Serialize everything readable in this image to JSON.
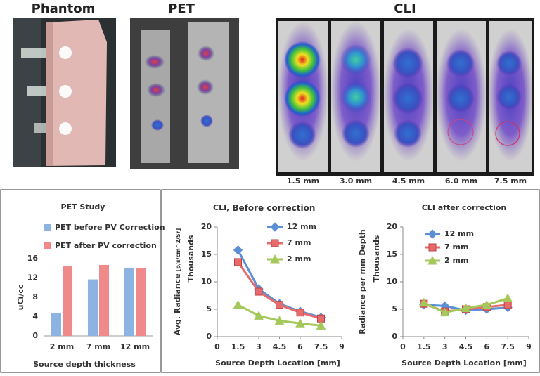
{
  "header": {
    "phantom": "Phantom",
    "pet": "PET",
    "cli": "CLI",
    "cli_depths": [
      "1.5 mm",
      "3.0 mm",
      "4.5 mm",
      "6.0 mm",
      "7.5 mm"
    ]
  },
  "chart_data": [
    {
      "type": "bar",
      "title": "PET Study",
      "ylabel": "uCi/cc",
      "xlabel": "Source depth thickness",
      "categories": [
        "2 mm",
        "7 mm",
        "12 mm"
      ],
      "series": [
        {
          "name": "PET before PV Correction",
          "color": "#8db3e2",
          "values": [
            4.7,
            11.7,
            14.1
          ]
        },
        {
          "name": "PET after PV correction",
          "color": "#f08a8a",
          "values": [
            14.5,
            14.7,
            14.1
          ]
        }
      ],
      "ylim": [
        0,
        16
      ],
      "yticks": [
        0,
        4,
        8,
        12,
        16
      ],
      "legend": "top-left"
    },
    {
      "type": "line",
      "title": "CLI,",
      "subtitle": "Before correction",
      "ylabel": "Avg. Radiance",
      "ylabel_unit": "[p/s/cm^2/Sr]",
      "ylabel2": "Thousands",
      "xlabel": "Source Depth Location  [mm]",
      "x": [
        1.5,
        3,
        4.5,
        6,
        7.5
      ],
      "series": [
        {
          "name": "12 mm",
          "color": "#5b8fd6",
          "marker": "diamond",
          "values": [
            15.8,
            8.7,
            6.0,
            4.6,
            3.5
          ]
        },
        {
          "name": "7 mm",
          "color": "#e86b6b",
          "marker": "square",
          "values": [
            13.6,
            8.2,
            5.8,
            4.4,
            3.3
          ]
        },
        {
          "name": "2 mm",
          "color": "#a5c85a",
          "marker": "triangle",
          "values": [
            5.8,
            3.8,
            2.9,
            2.4,
            2.0
          ]
        }
      ],
      "xlim": [
        0,
        9
      ],
      "xticks": [
        0,
        1.5,
        3,
        4.5,
        6,
        7.5,
        9
      ],
      "ylim": [
        0,
        20
      ],
      "yticks": [
        0,
        5,
        10,
        15,
        20
      ],
      "legend": "top-right"
    },
    {
      "type": "line",
      "title": "CLI after correction",
      "ylabel": "Radiance per mm Depth",
      "ylabel2": "Thousands",
      "xlabel": "Source Depth Location [mm]",
      "x": [
        1.5,
        3,
        4.5,
        6,
        7.5
      ],
      "series": [
        {
          "name": "12 mm",
          "color": "#5b8fd6",
          "marker": "diamond",
          "values": [
            5.8,
            5.6,
            4.8,
            5.0,
            5.3
          ]
        },
        {
          "name": "7 mm",
          "color": "#e86b6b",
          "marker": "square",
          "values": [
            6.0,
            4.6,
            5.0,
            5.4,
            5.8
          ]
        },
        {
          "name": "2 mm",
          "color": "#a5c85a",
          "marker": "triangle",
          "values": [
            6.2,
            4.4,
            5.2,
            5.8,
            7.0
          ]
        }
      ],
      "xlim": [
        0,
        9
      ],
      "xticks": [
        0,
        1.5,
        3,
        4.5,
        6,
        7.5,
        9
      ],
      "ylim": [
        0,
        20
      ],
      "yticks": [
        0,
        5,
        10,
        15,
        20
      ],
      "legend": "top-right"
    }
  ]
}
